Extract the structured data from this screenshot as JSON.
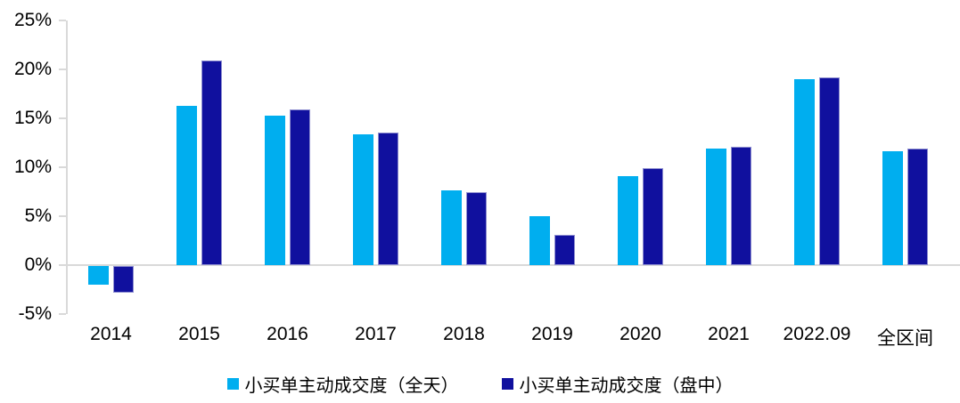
{
  "chart_data": {
    "type": "bar",
    "title": "",
    "categories": [
      "2014",
      "2015",
      "2016",
      "2017",
      "2018",
      "2019",
      "2020",
      "2021",
      "2022.09",
      "全区间"
    ],
    "series": [
      {
        "name": "小买单主动成交度（全天）",
        "color": "#00AEEF",
        "values": [
          -1.9,
          16.3,
          15.3,
          13.4,
          7.6,
          5.0,
          9.1,
          11.9,
          19.0,
          11.6
        ]
      },
      {
        "name": "小买单主动成交度（盘中）",
        "color": "#10109E",
        "values": [
          -2.8,
          20.9,
          15.9,
          13.5,
          7.4,
          3.1,
          9.9,
          12.1,
          19.2,
          11.9
        ]
      }
    ],
    "xlabel": "",
    "ylabel": "",
    "ylim": [
      -5,
      25
    ],
    "ytick_step": 5,
    "ytick_labels": [
      "25%",
      "20%",
      "15%",
      "10%",
      "5%",
      "0%",
      "-5%"
    ],
    "grid": "zero-baseline-only",
    "legend_position": "bottom",
    "background_color": "#ffffff",
    "axis_color": "#d9d9d9",
    "text_color": "#000000",
    "dark_bar_border_color": "#8f8fd0"
  }
}
